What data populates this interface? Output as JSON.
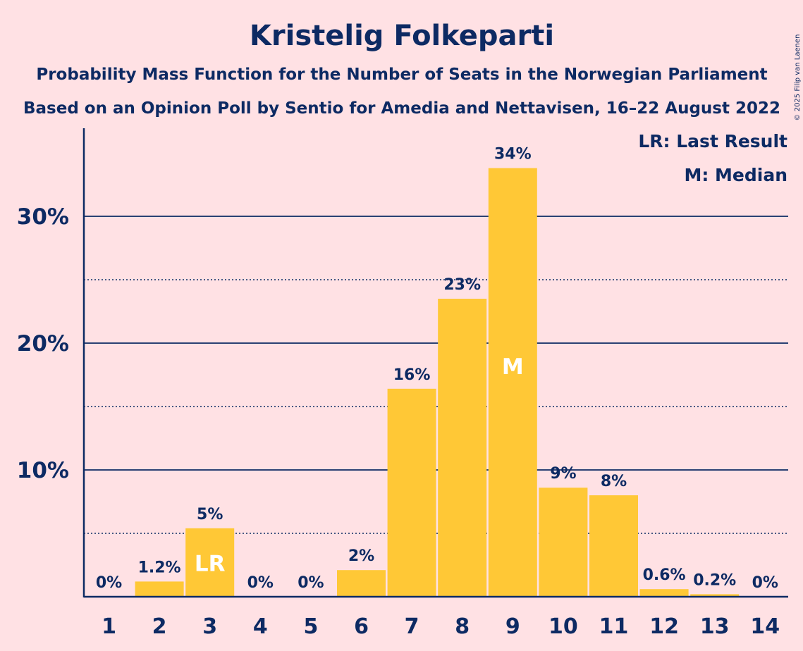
{
  "chart_data": {
    "type": "bar",
    "title": "Kristelig Folkeparti",
    "subtitle_lines": [
      "Probability Mass Function for the Number of Seats in the Norwegian Parliament",
      "Based on an Opinion Poll by Sentio for Amedia and Nettavisen, 16–22 August 2022"
    ],
    "categories": [
      "1",
      "2",
      "3",
      "4",
      "5",
      "6",
      "7",
      "8",
      "9",
      "10",
      "11",
      "12",
      "13",
      "14"
    ],
    "values": [
      0,
      1.2,
      5.4,
      0,
      0,
      2.1,
      16.4,
      23.5,
      33.8,
      8.6,
      8.0,
      0.6,
      0.2,
      0
    ],
    "data_labels": [
      "0%",
      "1.2%",
      "5%",
      "0%",
      "0%",
      "2%",
      "16%",
      "23%",
      "34%",
      "9%",
      "8%",
      "0.6%",
      "0.2%",
      "0%"
    ],
    "ylim": [
      0,
      37
    ],
    "yticks": [
      10,
      20,
      30
    ],
    "ytick_labels": [
      "10%",
      "20%",
      "30%"
    ],
    "minor_gridlines": [
      5,
      15,
      25
    ],
    "markers": [
      {
        "category": "3",
        "text": "LR"
      },
      {
        "category": "9",
        "text": "M"
      }
    ],
    "legend": {
      "placement": "top-right",
      "lines": [
        "LR: Last Result",
        "M: Median"
      ]
    },
    "colors": {
      "bar": "#FFC836",
      "text": "#0D2A63",
      "background": "#FFE1E4",
      "marker_text": "#FFFFFF"
    },
    "copyright": "© 2025 Filip van Laenen"
  }
}
